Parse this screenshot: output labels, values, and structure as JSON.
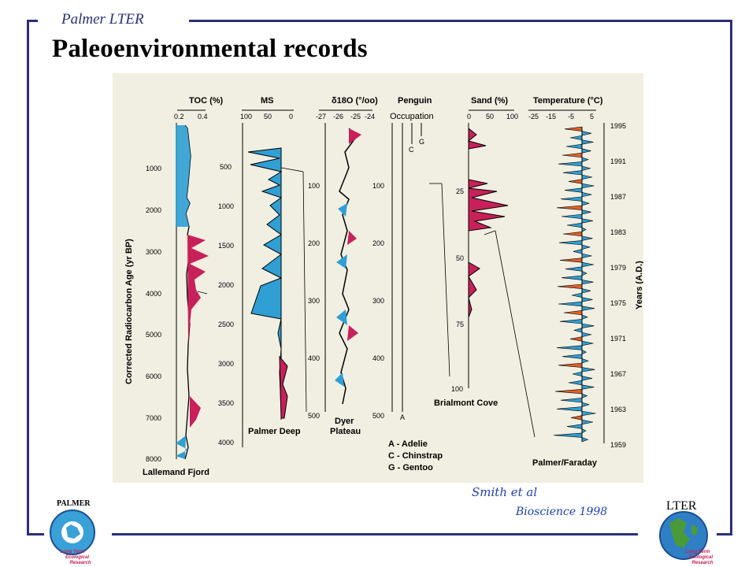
{
  "header": {
    "brand": "Palmer LTER",
    "title": "Paleoenvironmental  records"
  },
  "figure": {
    "toc": {
      "header": "TOC (%)",
      "ticks": [
        "0.2",
        "0.4"
      ],
      "y_label": "Corrected Radiocarbon Age (yr BP)",
      "y_ticks": [
        "1000",
        "2000",
        "3000",
        "4000",
        "5000",
        "6000",
        "7000",
        "8000"
      ],
      "site": "Lallemand Fjord"
    },
    "ms": {
      "header": "MS",
      "ticks": [
        "100",
        "50",
        "0"
      ],
      "y_ticks": [
        "500",
        "1000",
        "1500",
        "2000",
        "2500",
        "3000",
        "3500",
        "4000"
      ],
      "site": "Palmer Deep"
    },
    "d18o": {
      "header": "δ18O (°/oo)",
      "ticks": [
        "-27",
        "-26",
        "-25",
        "-24"
      ],
      "y_ticks": [
        "100",
        "200",
        "300",
        "400",
        "500"
      ],
      "site_line1": "Dyer",
      "site_line2": "Plateau"
    },
    "penguin": {
      "header_line1": "Penguin",
      "header_line2": "Occupation",
      "y_ticks": [
        "100",
        "200",
        "300",
        "400",
        "500"
      ],
      "markers": [
        "A",
        "C",
        "G"
      ],
      "legend": [
        "A - Adelie",
        "C - Chinstrap",
        "G - Gentoo"
      ]
    },
    "sand": {
      "header": "Sand (%)",
      "ticks": [
        "0",
        "50",
        "100"
      ],
      "y_ticks": [
        "25",
        "50",
        "75",
        "100"
      ],
      "site": "Brialmont Cove"
    },
    "temp": {
      "header": "Temperature (°C)",
      "ticks": [
        "-25",
        "-15",
        "-5",
        "5"
      ],
      "year_label": "Years (A.D.)",
      "years": [
        "1995",
        "1991",
        "1987",
        "1983",
        "1979",
        "1975",
        "1971",
        "1967",
        "1963",
        "1959"
      ],
      "site": "Palmer/Faraday"
    }
  },
  "annotation": {
    "line1": "Smith et al",
    "line2": "Bioscience 1998"
  },
  "logos": {
    "left_name": "PALMER",
    "left_motto_1": "Long Term",
    "left_motto_2": "Ecological",
    "left_motto_3": "Research",
    "right_name": "LTER",
    "right_motto_1": "Long Term",
    "right_motto_2": "Ecological",
    "right_motto_3": "Research"
  },
  "colors": {
    "frame": "#2b2f7a",
    "figure_bg": "#f1efe2",
    "blue_fill": "#2f9fd4",
    "red_fill": "#c8205a",
    "orange_fill": "#e0602a"
  }
}
